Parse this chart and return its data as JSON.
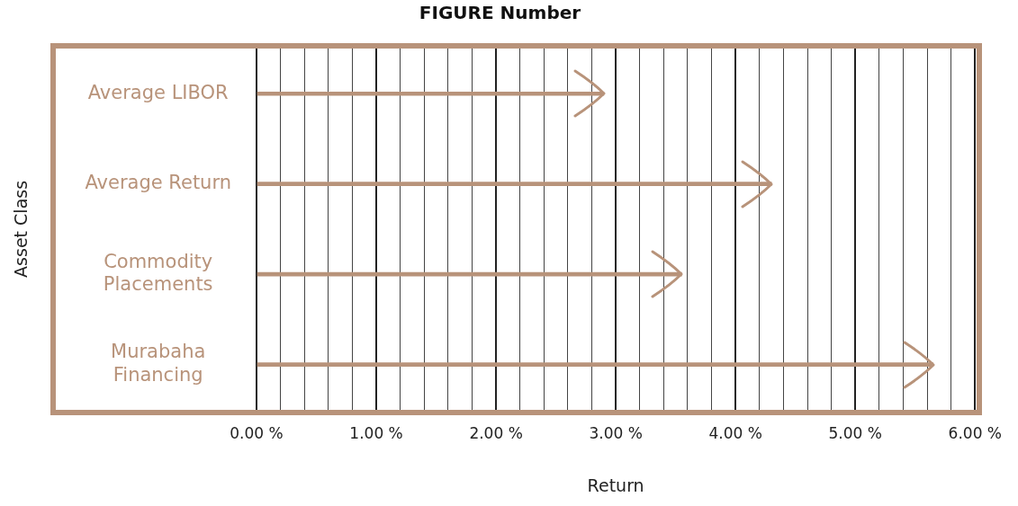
{
  "chart_data": {
    "type": "bar",
    "orientation": "horizontal",
    "title": "FIGURE Number",
    "xlabel": "Return",
    "ylabel": "Asset Class",
    "categories": [
      "Average LIBOR",
      "Average Return",
      "Commodity Placements",
      "Murabaha Financing"
    ],
    "values": [
      2.9,
      4.3,
      3.55,
      5.65
    ],
    "color": "#b8937a",
    "xlim": [
      0,
      6
    ],
    "xticks": [
      {
        "value": 0,
        "label": "0.00 %"
      },
      {
        "value": 0.2,
        "label": null
      },
      {
        "value": 0.4,
        "label": null
      },
      {
        "value": 0.6,
        "label": null
      },
      {
        "value": 0.8,
        "label": null
      },
      {
        "value": 1,
        "label": "1.00 %"
      },
      {
        "value": 1.2,
        "label": null
      },
      {
        "value": 1.4,
        "label": null
      },
      {
        "value": 1.6,
        "label": null
      },
      {
        "value": 1.8,
        "label": null
      },
      {
        "value": 2,
        "label": "2.00 %"
      },
      {
        "value": 2.2,
        "label": null
      },
      {
        "value": 2.4,
        "label": null
      },
      {
        "value": 2.6,
        "label": null
      },
      {
        "value": 2.8,
        "label": null
      },
      {
        "value": 3,
        "label": "3.00 %"
      },
      {
        "value": 3.2,
        "label": null
      },
      {
        "value": 3.4,
        "label": null
      },
      {
        "value": 3.6,
        "label": null
      },
      {
        "value": 3.8,
        "label": null
      },
      {
        "value": 4,
        "label": "4.00 %"
      },
      {
        "value": 4.2,
        "label": null
      },
      {
        "value": 4.4,
        "label": null
      },
      {
        "value": 4.6,
        "label": null
      },
      {
        "value": 4.8,
        "label": null
      },
      {
        "value": 5,
        "label": "5.00 %"
      },
      {
        "value": 5.2,
        "label": null
      },
      {
        "value": 5.4,
        "label": null
      },
      {
        "value": 5.6,
        "label": null
      },
      {
        "value": 5.8,
        "label": null
      },
      {
        "value": 6,
        "label": "6.00 %"
      }
    ],
    "grid": "x"
  }
}
